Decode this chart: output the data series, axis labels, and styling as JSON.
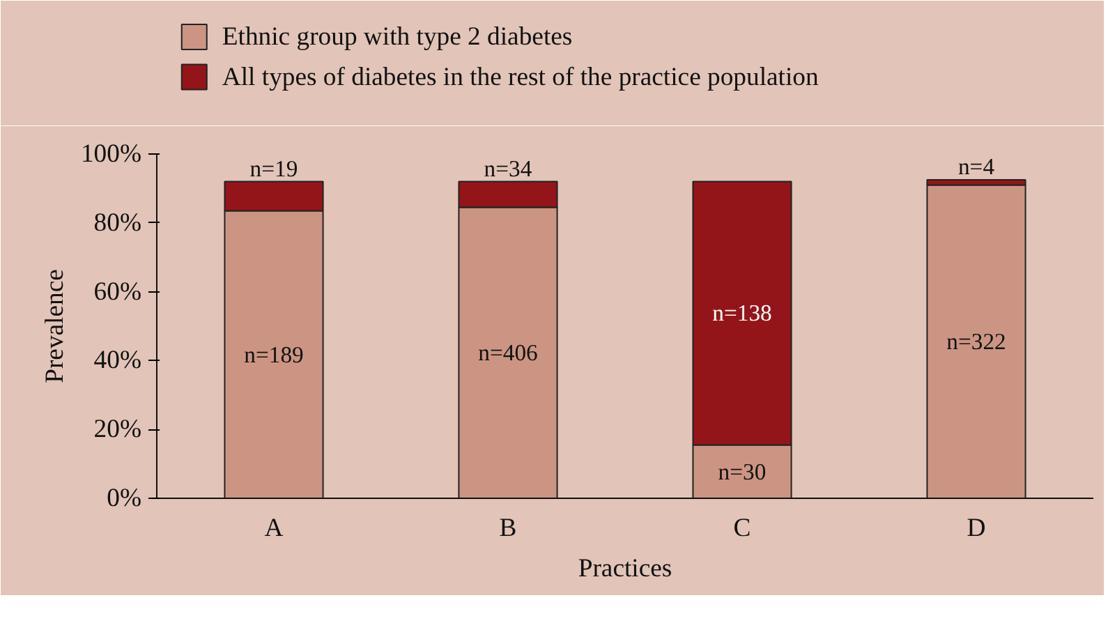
{
  "chart_data": {
    "type": "bar",
    "stacked": true,
    "xlabel": "Practices",
    "ylabel": "Prevalence",
    "categories": [
      "A",
      "B",
      "C",
      "D"
    ],
    "series": [
      {
        "name": "Ethnic group with type 2 diabetes",
        "color": "#cc9583",
        "values": [
          83.5,
          84.5,
          15.5,
          91
        ]
      },
      {
        "name": "All types of diabetes in the rest of the practice population",
        "color": "#941519",
        "values": [
          8.5,
          7.5,
          76.5,
          1.5
        ]
      }
    ],
    "annotations": [
      "n=189",
      "n=406",
      "n=30",
      "n=322",
      "n=19",
      "n=34",
      "n=138",
      "n=4"
    ],
    "ylim": [
      0,
      100
    ],
    "yticks": [
      {
        "value": 0,
        "label": "0%"
      },
      {
        "value": 20,
        "label": "20%"
      },
      {
        "value": 40,
        "label": "40%"
      },
      {
        "value": 60,
        "label": "60%"
      },
      {
        "value": 80,
        "label": "80%"
      },
      {
        "value": 100,
        "label": "100%"
      }
    ],
    "legend": "top left"
  }
}
